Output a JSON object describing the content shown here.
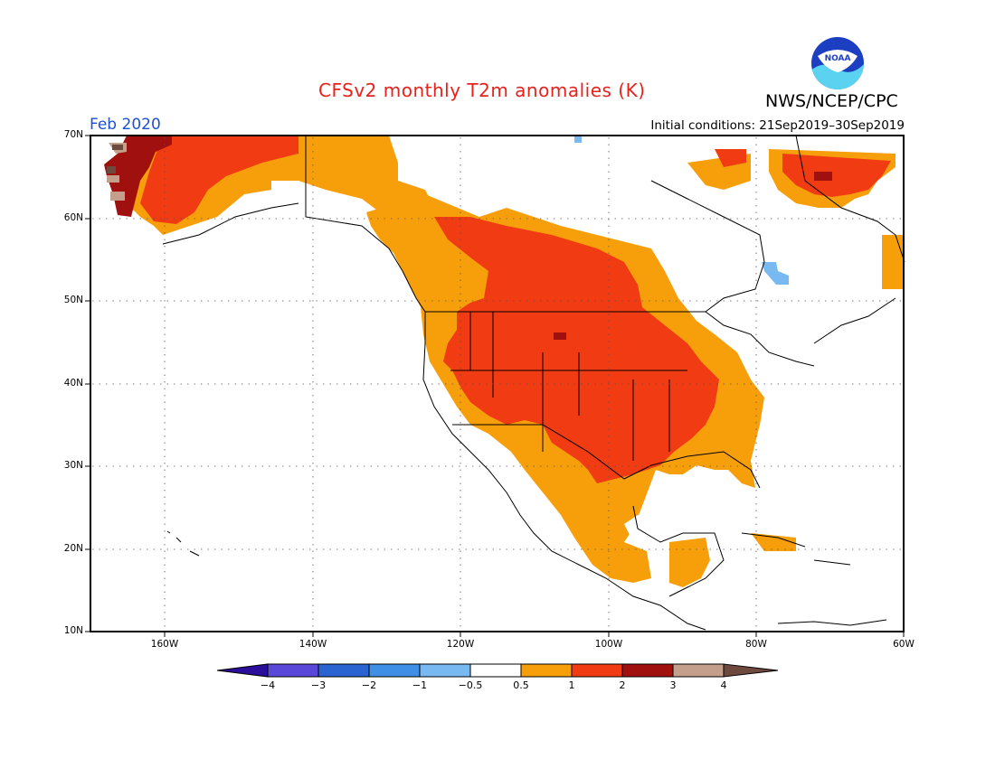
{
  "header": {
    "title": "CFSv2 monthly T2m anomalies (K)",
    "agency": "NWS/NCEP/CPC",
    "logo_text": "NOAA",
    "valid_month": "Feb 2020",
    "initial_conditions": "Initial conditions: 21Sep2019–30Sep2019"
  },
  "map": {
    "lat_labels": [
      "70N",
      "60N",
      "50N",
      "40N",
      "30N",
      "20N",
      "10N"
    ],
    "lon_labels": [
      "160W",
      "140W",
      "120W",
      "100W",
      "80W",
      "60W"
    ],
    "extent": {
      "lon": [
        -170,
        -60
      ],
      "lat": [
        10,
        70
      ]
    }
  },
  "colorbar": {
    "labels": [
      "−4",
      "−3",
      "−2",
      "−1",
      "−0.5",
      "0.5",
      "1",
      "2",
      "3",
      "4"
    ],
    "colors": [
      "#2b0f9a",
      "#5a48d8",
      "#2a64d0",
      "#3f8fe6",
      "#79b9f2",
      "#ffffff",
      "#f79f0a",
      "#f03b13",
      "#a0100e",
      "#c4a08c",
      "#6e4a3e"
    ]
  },
  "colors": {
    "title": "#e8221b",
    "month": "#1d4fd0",
    "anom_0_5_to_1": "#f79f0a",
    "anom_1_to_2": "#f03b13",
    "anom_2_to_3": "#a0100e",
    "anom_3_to_4": "#c4a08c",
    "anom_gt_4": "#6e4a3e",
    "anom_neg_0_5_to_1": "#79b9f2"
  }
}
